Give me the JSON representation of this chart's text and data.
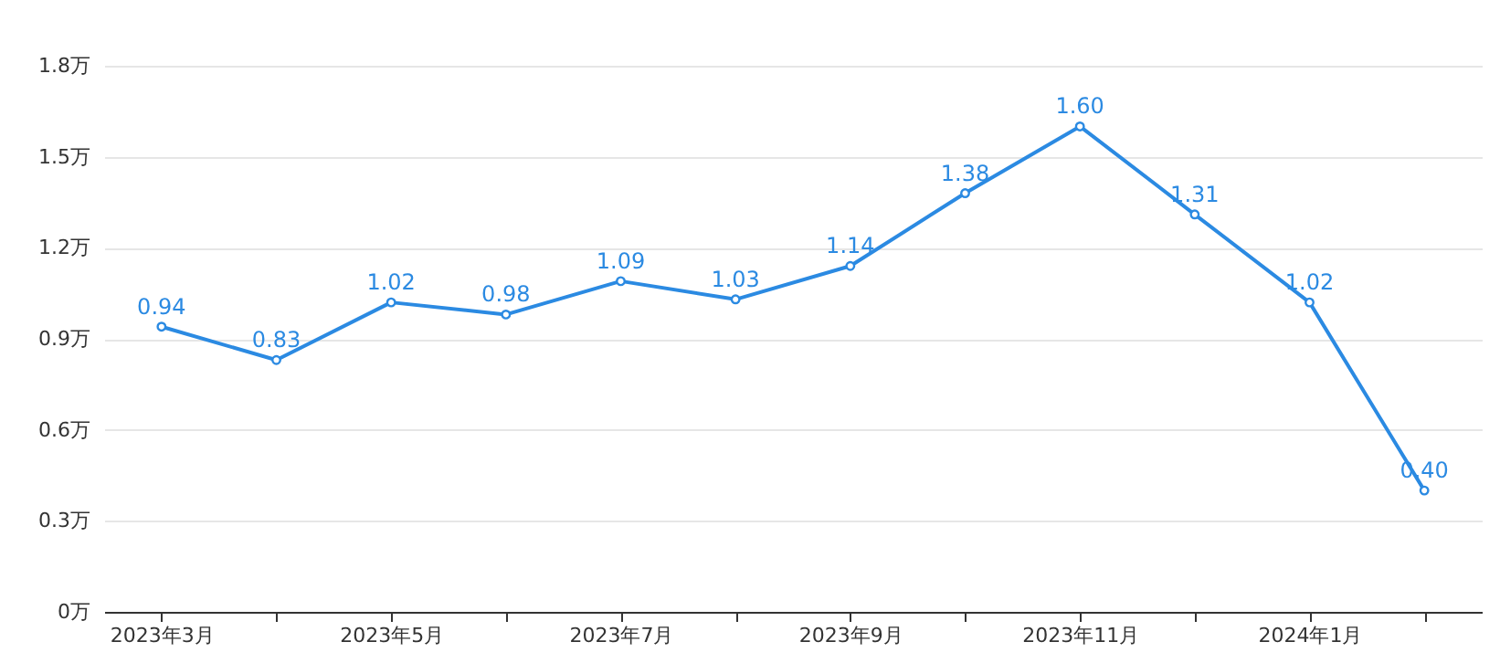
{
  "chart_data": {
    "type": "line",
    "categories": [
      "2023年3月",
      null,
      "2023年5月",
      null,
      "2023年7月",
      null,
      "2023年9月",
      null,
      "2023年11月",
      null,
      "2024年1月",
      null
    ],
    "series": [
      {
        "color": "#2b8ae2",
        "values": [
          0.94,
          0.83,
          1.02,
          0.98,
          1.09,
          1.03,
          1.14,
          1.38,
          1.6,
          1.31,
          1.02,
          0.4
        ],
        "value_labels": [
          "0.94",
          "0.83",
          "1.02",
          "0.98",
          "1.09",
          "1.03",
          "1.14",
          "1.38",
          "1.60",
          "1.31",
          "1.02",
          "0.40"
        ]
      }
    ],
    "ylim": [
      0,
      1.8
    ],
    "yticks": [
      {
        "value": 0,
        "label": "0万"
      },
      {
        "value": 0.3,
        "label": "0.3万"
      },
      {
        "value": 0.6,
        "label": "0.6万"
      },
      {
        "value": 0.9,
        "label": "0.9万"
      },
      {
        "value": 1.2,
        "label": "1.2万"
      },
      {
        "value": 1.5,
        "label": "1.5万"
      },
      {
        "value": 1.8,
        "label": "1.8万"
      }
    ],
    "grid": "y",
    "marker": "circle",
    "line_style": "solid"
  }
}
